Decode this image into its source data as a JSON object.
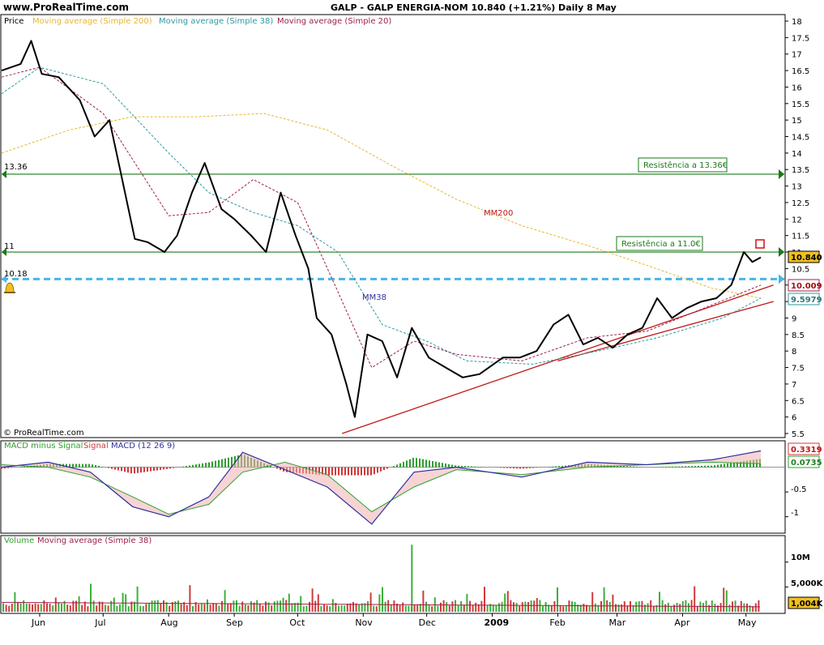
{
  "header": {
    "site": "www.ProRealTime.com",
    "title": "GALP - GALP ENERGIA-NOM     10.840 (+1.21%)    Daily  8 May"
  },
  "colors": {
    "price": "#000000",
    "ma200": "#e8b830",
    "ma38": "#2f9aa0",
    "ma20": "#a02050",
    "resistance": "#1a7a1a",
    "support": "#4ab4e8",
    "trend": "#c01818",
    "macd": "#3030a0",
    "signal": "#30a030",
    "volume": "#3ab03a",
    "volume_down": "#d03a3a"
  },
  "legend": {
    "price": "Price",
    "ma200": "Moving average (Simple 200)",
    "ma38": "Moving average (Simple 38)",
    "ma20": "Moving average (Simple 20)"
  },
  "copyright": "© ProRealTime.com",
  "price_axis": {
    "ticks": [
      "18",
      "17.5",
      "17",
      "16.5",
      "16",
      "15.5",
      "15",
      "14.5",
      "14",
      "13.5",
      "13",
      "12.5",
      "12",
      "11.5",
      "11",
      "10.5",
      "10",
      "9.5",
      "9",
      "8.5",
      "8",
      "7.5",
      "7",
      "6.5",
      "6",
      "5.5"
    ]
  },
  "price_labels": {
    "last": "10.840",
    "ma20": "10.009",
    "ma38": "9.5979"
  },
  "levels": {
    "r1": {
      "value": 13.36,
      "label": "13.36",
      "box": "Resistência a 13.36€"
    },
    "r2": {
      "value": 11.0,
      "label": "11",
      "box": "Resistência a 11.0€"
    },
    "s1": {
      "value": 10.18,
      "label": "10.18"
    }
  },
  "annotations": {
    "mm200": "MM200",
    "mm38": "MM38"
  },
  "macd": {
    "legend_hist": "MACD minus Signal",
    "legend_signal": "Signal",
    "legend_macd": "MACD (12 26 9)",
    "label_macd": "0.3319",
    "label_signal": "0.0735",
    "ticks": [
      "-0.5",
      "-1"
    ]
  },
  "volume": {
    "legend_vol": "Volume",
    "legend_ma": "Moving average (Simple 38)",
    "ticks": [
      "10M",
      "5,000K"
    ],
    "label_ma": "1,004K"
  },
  "months": [
    "Jun",
    "Jul",
    "Aug",
    "Sep",
    "Oct",
    "Nov",
    "Dec",
    "2009",
    "Feb",
    "Mar",
    "Apr",
    "May"
  ],
  "chart_data": {
    "type": "line",
    "title": "GALP - GALP ENERGIA-NOM",
    "x_range": [
      "2008-05-14",
      "2009-05-08"
    ],
    "ylim": [
      5.5,
      18
    ],
    "series": [
      {
        "name": "Price",
        "x": [
          "2008-05-14",
          "2008-05-23",
          "2008-05-28",
          "2008-06-02",
          "2008-06-10",
          "2008-06-20",
          "2008-06-27",
          "2008-07-04",
          "2008-07-09",
          "2008-07-16",
          "2008-07-22",
          "2008-07-30",
          "2008-08-05",
          "2008-08-12",
          "2008-08-18",
          "2008-08-26",
          "2008-09-01",
          "2008-09-09",
          "2008-09-16",
          "2008-09-23",
          "2008-09-30",
          "2008-10-06",
          "2008-10-10",
          "2008-10-17",
          "2008-10-24",
          "2008-10-28",
          "2008-11-03",
          "2008-11-10",
          "2008-11-17",
          "2008-11-24",
          "2008-12-02",
          "2008-12-10",
          "2008-12-18",
          "2008-12-26",
          "2009-01-06",
          "2009-01-14",
          "2009-01-22",
          "2009-01-30",
          "2009-02-06",
          "2009-02-13",
          "2009-02-20",
          "2009-02-27",
          "2009-03-06",
          "2009-03-13",
          "2009-03-20",
          "2009-03-27",
          "2009-04-03",
          "2009-04-10",
          "2009-04-17",
          "2009-04-24",
          "2009-04-30",
          "2009-05-04",
          "2009-05-08"
        ],
        "values": [
          16.5,
          16.7,
          17.4,
          16.4,
          16.3,
          15.6,
          14.5,
          15.0,
          13.5,
          11.4,
          11.3,
          11.0,
          11.5,
          12.8,
          13.7,
          12.3,
          12.0,
          11.5,
          11.0,
          12.8,
          11.5,
          10.5,
          9.0,
          8.5,
          7.0,
          6.0,
          8.5,
          8.3,
          7.2,
          8.7,
          7.8,
          7.5,
          7.2,
          7.3,
          7.8,
          7.8,
          8.0,
          8.8,
          9.1,
          8.2,
          8.4,
          8.1,
          8.5,
          8.7,
          9.6,
          9.0,
          9.3,
          9.5,
          9.6,
          10.0,
          11.0,
          10.7,
          10.84
        ]
      },
      {
        "name": "Moving average (Simple 200)",
        "x": [
          "2008-05-14",
          "2008-06-15",
          "2008-07-15",
          "2008-08-15",
          "2008-09-15",
          "2008-10-15",
          "2008-11-15",
          "2008-12-15",
          "2009-01-15",
          "2009-02-15",
          "2009-03-15",
          "2009-04-15",
          "2009-05-08"
        ],
        "values": [
          14.0,
          14.7,
          15.1,
          15.1,
          15.2,
          14.7,
          13.6,
          12.6,
          11.8,
          11.2,
          10.6,
          9.9,
          9.6
        ]
      },
      {
        "name": "Moving average (Simple 38)",
        "x": [
          "2008-05-14",
          "2008-06-01",
          "2008-07-01",
          "2008-08-01",
          "2008-08-20",
          "2008-09-10",
          "2008-10-01",
          "2008-10-20",
          "2008-11-10",
          "2008-12-01",
          "2008-12-20",
          "2009-01-20",
          "2009-02-20",
          "2009-03-20",
          "2009-04-20",
          "2009-05-08"
        ],
        "values": [
          15.8,
          16.6,
          16.1,
          14.0,
          12.8,
          12.2,
          11.8,
          11.0,
          8.8,
          8.3,
          7.7,
          7.6,
          8.0,
          8.4,
          9.0,
          9.6
        ]
      },
      {
        "name": "Moving average (Simple 20)",
        "x": [
          "2008-05-14",
          "2008-06-01",
          "2008-07-01",
          "2008-08-01",
          "2008-08-20",
          "2008-09-10",
          "2008-10-01",
          "2008-10-20",
          "2008-11-05",
          "2008-11-25",
          "2008-12-15",
          "2009-01-15",
          "2009-02-15",
          "2009-03-15",
          "2009-04-15",
          "2009-05-08"
        ],
        "values": [
          16.3,
          16.6,
          15.2,
          12.1,
          12.2,
          13.2,
          12.5,
          9.8,
          7.5,
          8.3,
          7.9,
          7.7,
          8.4,
          8.6,
          9.4,
          10.0
        ]
      }
    ],
    "trendlines": [
      {
        "from": [
          "2008-10-22",
          5.5
        ],
        "to": [
          "2009-05-14",
          10.0
        ]
      },
      {
        "from": [
          "2009-02-01",
          7.7
        ],
        "to": [
          "2009-05-14",
          9.5
        ]
      }
    ],
    "macd": {
      "x": [
        "2008-05-14",
        "2008-06-05",
        "2008-06-25",
        "2008-07-15",
        "2008-08-01",
        "2008-08-20",
        "2008-09-05",
        "2008-09-25",
        "2008-10-15",
        "2008-11-05",
        "2008-11-25",
        "2008-12-15",
        "2009-01-15",
        "2009-02-15",
        "2009-03-15",
        "2009-04-15",
        "2009-05-08"
      ],
      "macd": [
        0.0,
        0.1,
        -0.1,
        -0.8,
        -1.0,
        -0.6,
        0.3,
        -0.05,
        -0.4,
        -1.15,
        -0.1,
        0.0,
        -0.2,
        0.1,
        0.05,
        0.15,
        0.33
      ],
      "signal": [
        0.05,
        0.0,
        -0.2,
        -0.6,
        -0.95,
        -0.75,
        -0.1,
        0.1,
        -0.15,
        -0.9,
        -0.4,
        -0.05,
        -0.15,
        0.0,
        0.05,
        0.1,
        0.07
      ],
      "ylim": [
        -1.3,
        0.5
      ]
    },
    "volume": {
      "ticks_values": [
        10000000,
        5000000
      ],
      "ma_last": 1004000,
      "ylim": [
        0,
        15000000
      ]
    }
  }
}
